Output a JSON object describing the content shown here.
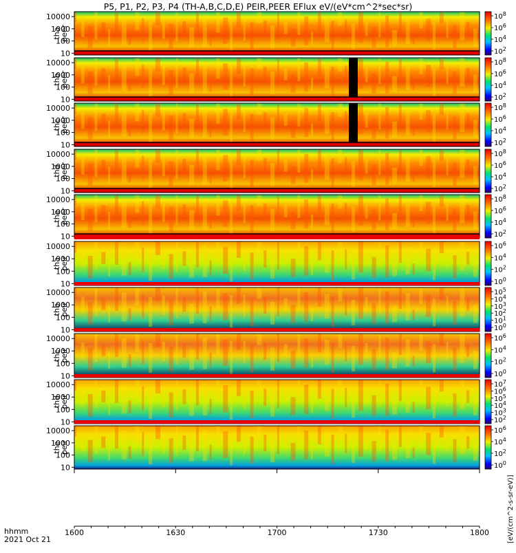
{
  "title": "P5, P1, P2, P3, P4 (TH-A,B,C,D,E) PEIR,PEER EFlux eV/(eV*cm^2*sec*sr)",
  "time_label": "hhmm",
  "date_label": "2021 Oct 21",
  "colorbar_unit_label": "[eV/(cm^2-s-sr-eV)]",
  "chart_data": {
    "type": "heatmap",
    "x_ticks": [
      "1600",
      "1630",
      "1700",
      "1730",
      "1800"
    ],
    "y_ticks": [
      "10",
      "100",
      "1000",
      "10000"
    ],
    "y_scale": "log",
    "panels": [
      {
        "id": "tha_peer",
        "probe": "tha",
        "species": "peer",
        "cbar_ticks": [
          "10^8",
          "10^6",
          "10^4",
          "10^2"
        ],
        "status_bar": false
      },
      {
        "id": "thb_peer",
        "probe": "thb",
        "species": "peer",
        "cbar_ticks": [
          "10^8",
          "10^6",
          "10^4",
          "10^2"
        ],
        "status_bar": false
      },
      {
        "id": "thc_peer",
        "probe": "thc",
        "species": "peer",
        "cbar_ticks": [
          "10^8",
          "10^6",
          "10^4",
          "10^2"
        ],
        "status_bar": false
      },
      {
        "id": "thd_peer",
        "probe": "thd",
        "species": "peer",
        "cbar_ticks": [
          "10^8",
          "10^6",
          "10^4",
          "10^2"
        ],
        "status_bar": false
      },
      {
        "id": "the_peer",
        "probe": "the",
        "species": "peer",
        "cbar_ticks": [
          "10^8",
          "10^6",
          "10^4",
          "10^2"
        ],
        "status_bar": false
      },
      {
        "id": "tha_peir",
        "probe": "tha",
        "species": "peir",
        "cbar_ticks": [
          "10^6",
          "10^4",
          "10^2",
          "10^0"
        ],
        "status_bar": true
      },
      {
        "id": "thb_peir",
        "probe": "thb",
        "species": "peir",
        "cbar_ticks": [
          "10^5",
          "10^4",
          "10^3",
          "10^2",
          "10^1",
          "10^0"
        ],
        "status_bar": true
      },
      {
        "id": "thc_peir",
        "probe": "thc",
        "species": "peir",
        "cbar_ticks": [
          "10^6",
          "10^4",
          "10^2",
          "10^0"
        ],
        "status_bar": true
      },
      {
        "id": "thd_peir",
        "probe": "thd",
        "species": "peir",
        "cbar_ticks": [
          "10^7",
          "10^6",
          "10^5",
          "10^4",
          "10^3",
          "10^2"
        ],
        "status_bar": true
      },
      {
        "id": "the_peir",
        "probe": "the",
        "species": "peir",
        "cbar_ticks": [
          "10^6",
          "10^4",
          "10^2",
          "10^0"
        ],
        "status_bar": true
      }
    ]
  }
}
